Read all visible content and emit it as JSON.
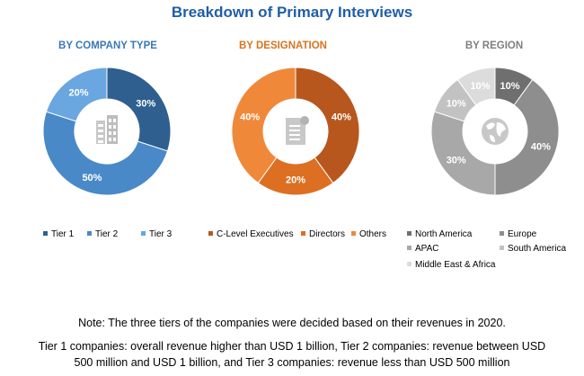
{
  "title": "Breakdown of Primary Interviews",
  "chart_data": [
    {
      "type": "pie",
      "donut": true,
      "title": "BY COMPANY TYPE",
      "title_color": "#3a78b8",
      "icon": "building-icon",
      "categories": [
        "Tier 1",
        "Tier 2",
        "Tier 3"
      ],
      "values": [
        30,
        50,
        20
      ],
      "labels": [
        "30%",
        "50%",
        "20%"
      ],
      "colors": [
        "#2e5f8f",
        "#4a89c8",
        "#6aa6e0"
      ],
      "legend_position": "bottom"
    },
    {
      "type": "pie",
      "donut": true,
      "title": "BY DESIGNATION",
      "title_color": "#d9731f",
      "icon": "document-icon",
      "categories": [
        "C-Level Executives",
        "Directors",
        "Others"
      ],
      "values": [
        40,
        20,
        40
      ],
      "labels": [
        "40%",
        "20%",
        "40%"
      ],
      "colors": [
        "#b8571d",
        "#dd6f22",
        "#f0883a"
      ],
      "legend_position": "bottom"
    },
    {
      "type": "pie",
      "donut": true,
      "title": "BY REGION",
      "title_color": "#7f7f7f",
      "icon": "globe-icon",
      "categories": [
        "North America",
        "Europe",
        "APAC",
        "South America",
        "Middle East & Africa"
      ],
      "values": [
        10,
        40,
        30,
        10,
        10
      ],
      "labels": [
        "10%",
        "40%",
        "30%",
        "10%",
        "10%"
      ],
      "colors": [
        "#6f6f6f",
        "#8e8e8e",
        "#a8a8a8",
        "#c2c2c2",
        "#dcdcdc"
      ],
      "legend_position": "bottom"
    }
  ],
  "note": "Note: The three tiers of the companies were decided based on their revenues in 2020.",
  "footnote_line1": "Tier 1 companies: overall revenue higher than USD 1 billion, Tier 2 companies: revenue between USD",
  "footnote_line2": "500 million and USD 1 billion, and Tier 3 companies: revenue less than USD 500 million"
}
